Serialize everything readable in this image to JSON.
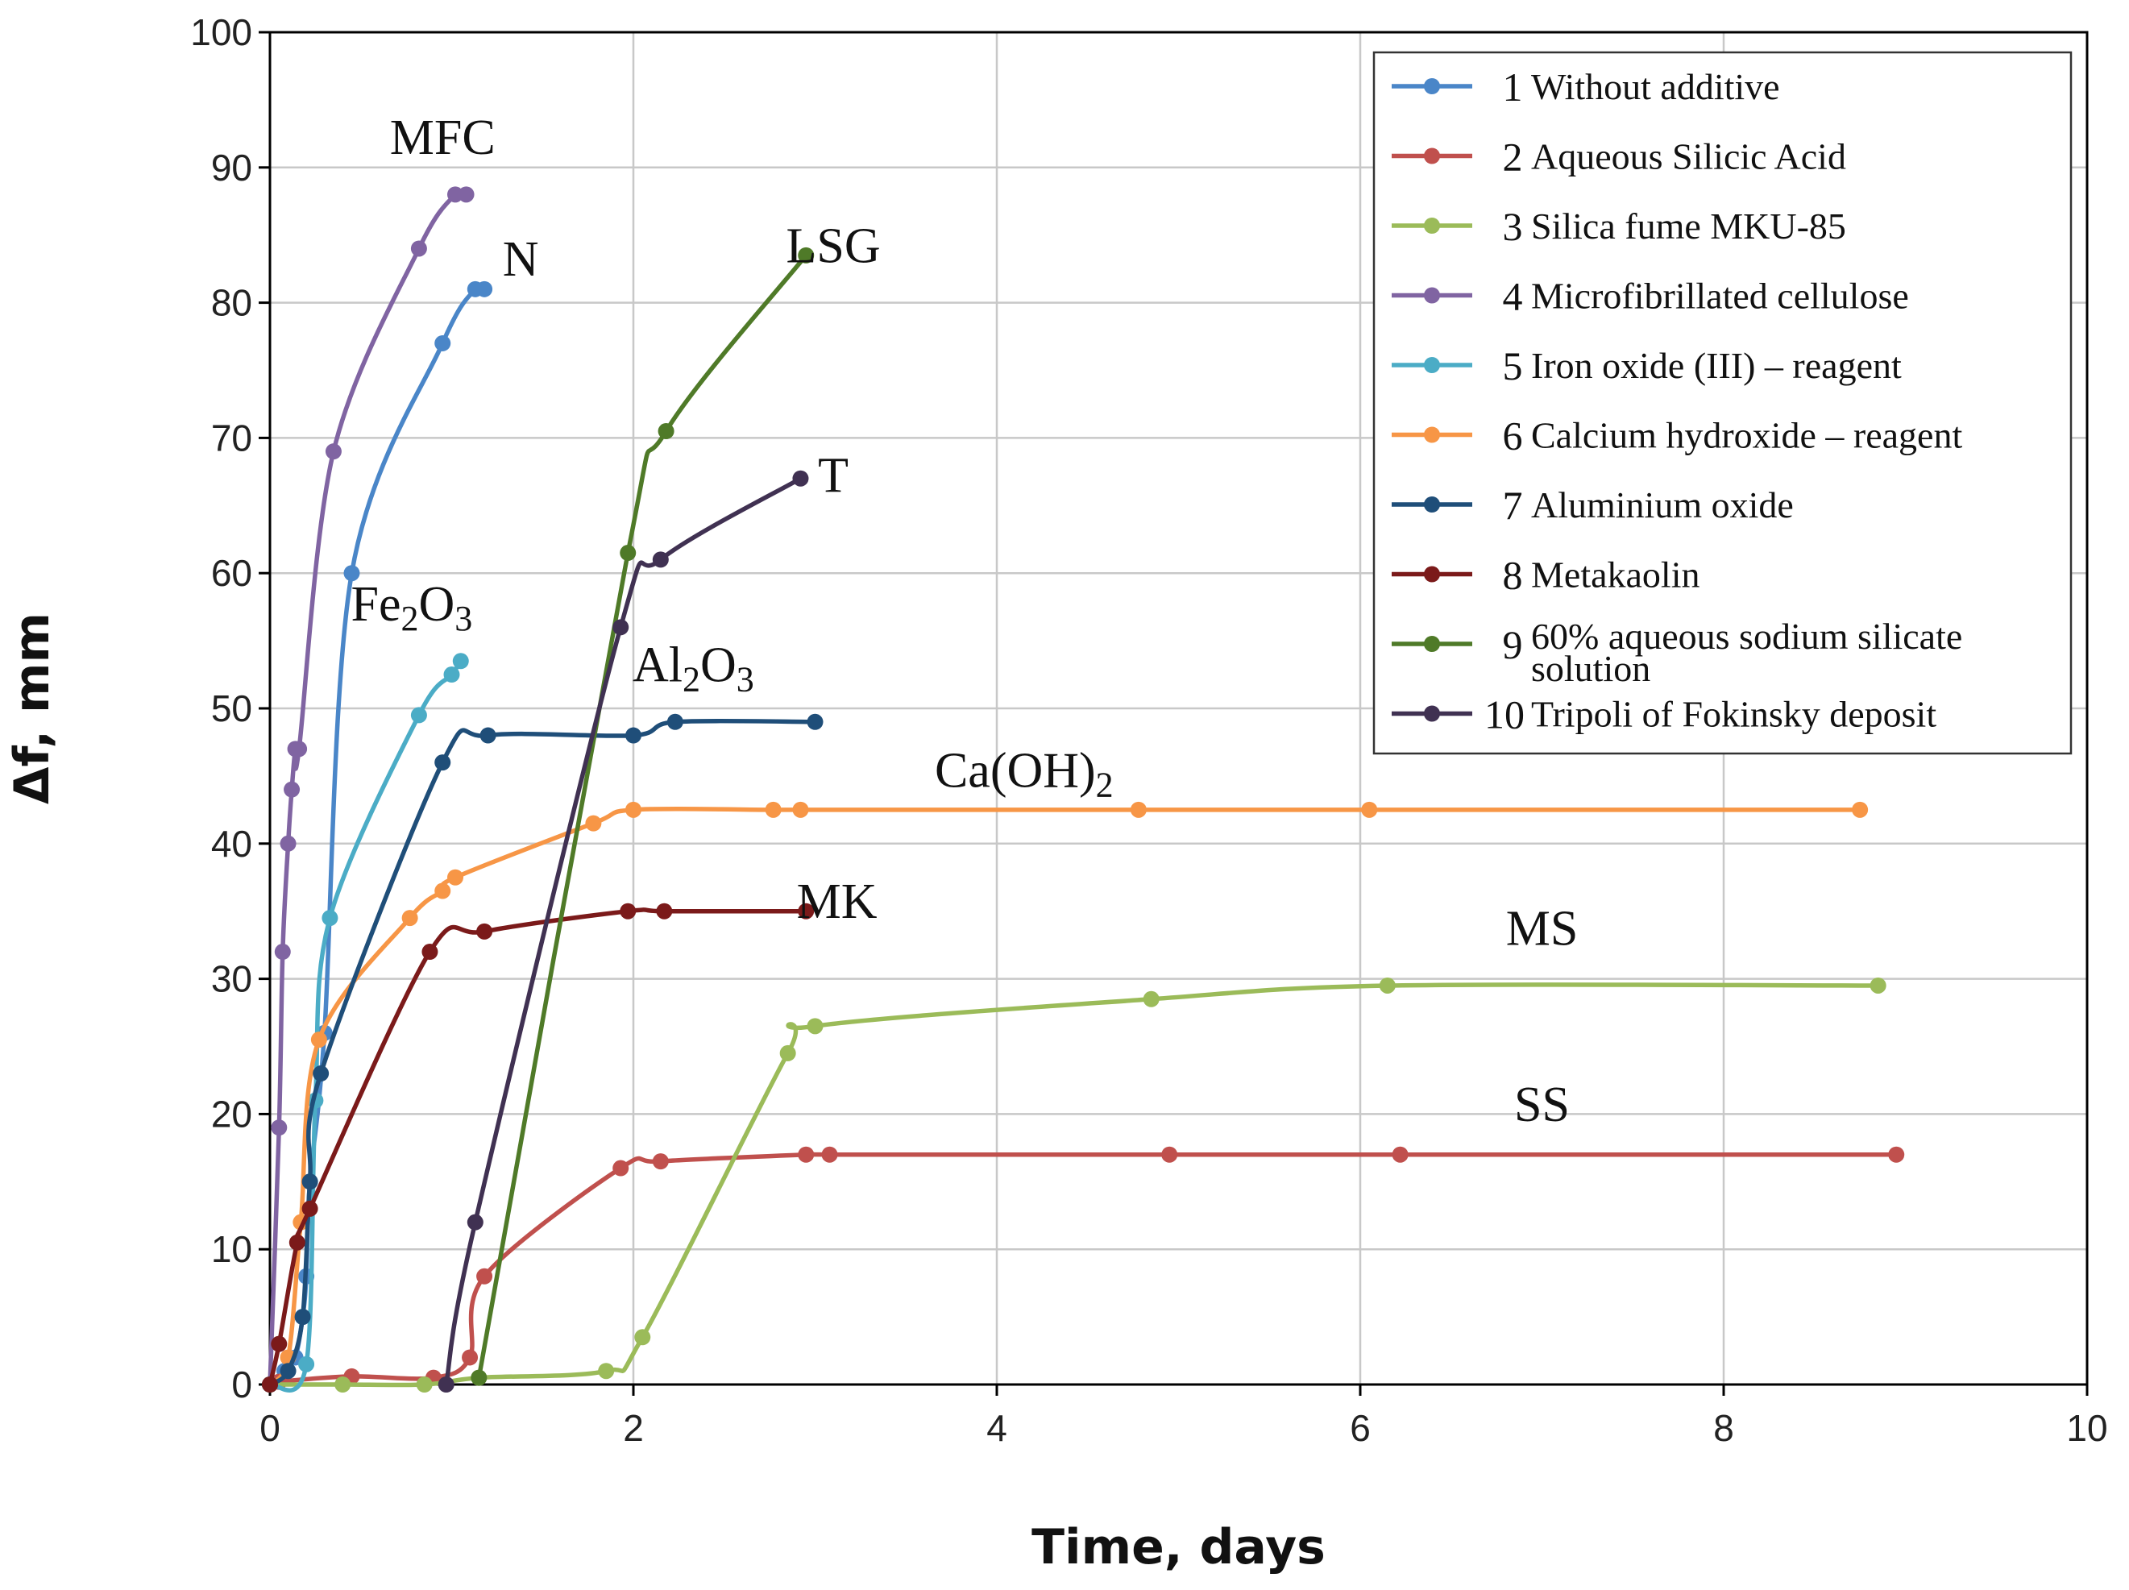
{
  "chart_data": {
    "type": "line",
    "title": "",
    "xlabel": "Time, days",
    "ylabel": "Δf, mm",
    "xlim": [
      0,
      10
    ],
    "ylim": [
      0,
      100
    ],
    "xticks": [
      0,
      2,
      4,
      6,
      8,
      10
    ],
    "yticks": [
      0,
      10,
      20,
      30,
      40,
      50,
      60,
      70,
      80,
      90,
      100
    ],
    "grid": true,
    "legend_position": "top-right",
    "series": [
      {
        "num": "1",
        "name": "Without additive",
        "color": "#4a86c8",
        "x": [
          0,
          0.08,
          0.14,
          0.18,
          0.2,
          0.22,
          0.3,
          0.45,
          0.95,
          1.13,
          1.18
        ],
        "y": [
          0,
          1,
          2,
          5,
          8,
          15,
          26,
          60,
          77,
          81,
          81
        ]
      },
      {
        "num": "2",
        "name": "Aqueous Silicic Acid",
        "color": "#c0504d",
        "x": [
          0,
          0.05,
          0.45,
          0.9,
          1.1,
          1.18,
          1.93,
          2.15,
          2.95,
          3.08,
          4.95,
          6.22,
          8.95
        ],
        "y": [
          0,
          0.2,
          0.6,
          0.5,
          2,
          8,
          16,
          16.5,
          17,
          17,
          17,
          17,
          17
        ]
      },
      {
        "num": "3",
        "name": "Silica fume MKU-85",
        "color": "#9bbb59",
        "x": [
          0,
          0.4,
          0.85,
          1.15,
          1.85,
          2.05,
          2.85,
          3.0,
          4.85,
          6.15,
          8.85
        ],
        "y": [
          0,
          0,
          0,
          0.5,
          1,
          3.5,
          24.5,
          26.5,
          28.5,
          29.5,
          29.5
        ]
      },
      {
        "num": "4",
        "name": "Microfibrillated cellulose",
        "color": "#8064a2",
        "x": [
          0,
          0.05,
          0.07,
          0.1,
          0.12,
          0.14,
          0.16,
          0.35,
          0.82,
          1.02,
          1.08
        ],
        "y": [
          0,
          19,
          32,
          40,
          44,
          47,
          47,
          69,
          84,
          88,
          88
        ]
      },
      {
        "num": "5",
        "name": "Iron oxide (III) – reagent",
        "color": "#4bacc6",
        "x": [
          0,
          0.2,
          0.25,
          0.33,
          0.82,
          1.0,
          1.05
        ],
        "y": [
          0,
          1.5,
          21,
          34.5,
          49.5,
          52.5,
          53.5
        ]
      },
      {
        "num": "6",
        "name": "Calcium hydroxide – reagent",
        "color": "#f79646",
        "x": [
          0,
          0.1,
          0.17,
          0.27,
          0.77,
          0.95,
          1.02,
          1.78,
          2.0,
          2.77,
          2.92,
          4.78,
          6.05,
          8.75
        ],
        "y": [
          0,
          2,
          12,
          25.5,
          34.5,
          36.5,
          37.5,
          41.5,
          42.5,
          42.5,
          42.5,
          42.5,
          42.5,
          42.5
        ]
      },
      {
        "num": "7",
        "name": "Aluminium oxide",
        "color": "#1f4e79",
        "x": [
          0,
          0.1,
          0.18,
          0.22,
          0.28,
          0.95,
          1.2,
          2.0,
          2.23,
          3.0
        ],
        "y": [
          0,
          1,
          5,
          15,
          23,
          46,
          48,
          48,
          49,
          49
        ]
      },
      {
        "num": "8",
        "name": "Metakaolin",
        "color": "#7b1a1a",
        "x": [
          0,
          0.05,
          0.15,
          0.22,
          0.88,
          1.18,
          1.97,
          2.17,
          2.95
        ],
        "y": [
          0,
          3,
          10.5,
          13,
          32,
          33.5,
          35,
          35,
          35
        ]
      },
      {
        "num": "9",
        "name": "60% aqueous sodium silicate solution",
        "color": "#4f7a28",
        "x": [
          1.15,
          1.97,
          2.18,
          2.95
        ],
        "y": [
          0.5,
          61.5,
          70.5,
          83.5
        ]
      },
      {
        "num": "10",
        "name": "Tripoli of Fokinsky deposit",
        "color": "#403152",
        "x": [
          0.97,
          1.13,
          1.93,
          2.15,
          2.92
        ],
        "y": [
          0,
          12,
          56,
          61,
          67
        ]
      }
    ],
    "annotations": [
      {
        "id": "mfc",
        "x": 0.95,
        "y": 91,
        "text": "MFC"
      },
      {
        "id": "n",
        "x": 1.38,
        "y": 82,
        "text": "N"
      },
      {
        "id": "fe2o3",
        "x": 0.78,
        "y": 56.5,
        "text": "Fe",
        "sub1": "2",
        "mid": "O",
        "sub2": "3"
      },
      {
        "id": "lsg",
        "x": 3.1,
        "y": 83,
        "text": "LSG"
      },
      {
        "id": "t",
        "x": 3.1,
        "y": 66,
        "text": "T"
      },
      {
        "id": "al2o3",
        "x": 2.33,
        "y": 52,
        "text": "Al",
        "sub1": "2",
        "mid": "O",
        "sub2": "3"
      },
      {
        "id": "caoh2",
        "x": 4.15,
        "y": 44.2,
        "text": "Ca(OH)",
        "sub1": "2"
      },
      {
        "id": "mk",
        "x": 3.12,
        "y": 34.5,
        "text": "MK"
      },
      {
        "id": "ms",
        "x": 7.0,
        "y": 32.5,
        "text": "MS"
      },
      {
        "id": "ss",
        "x": 7.0,
        "y": 19.5,
        "text": "SS"
      }
    ]
  }
}
